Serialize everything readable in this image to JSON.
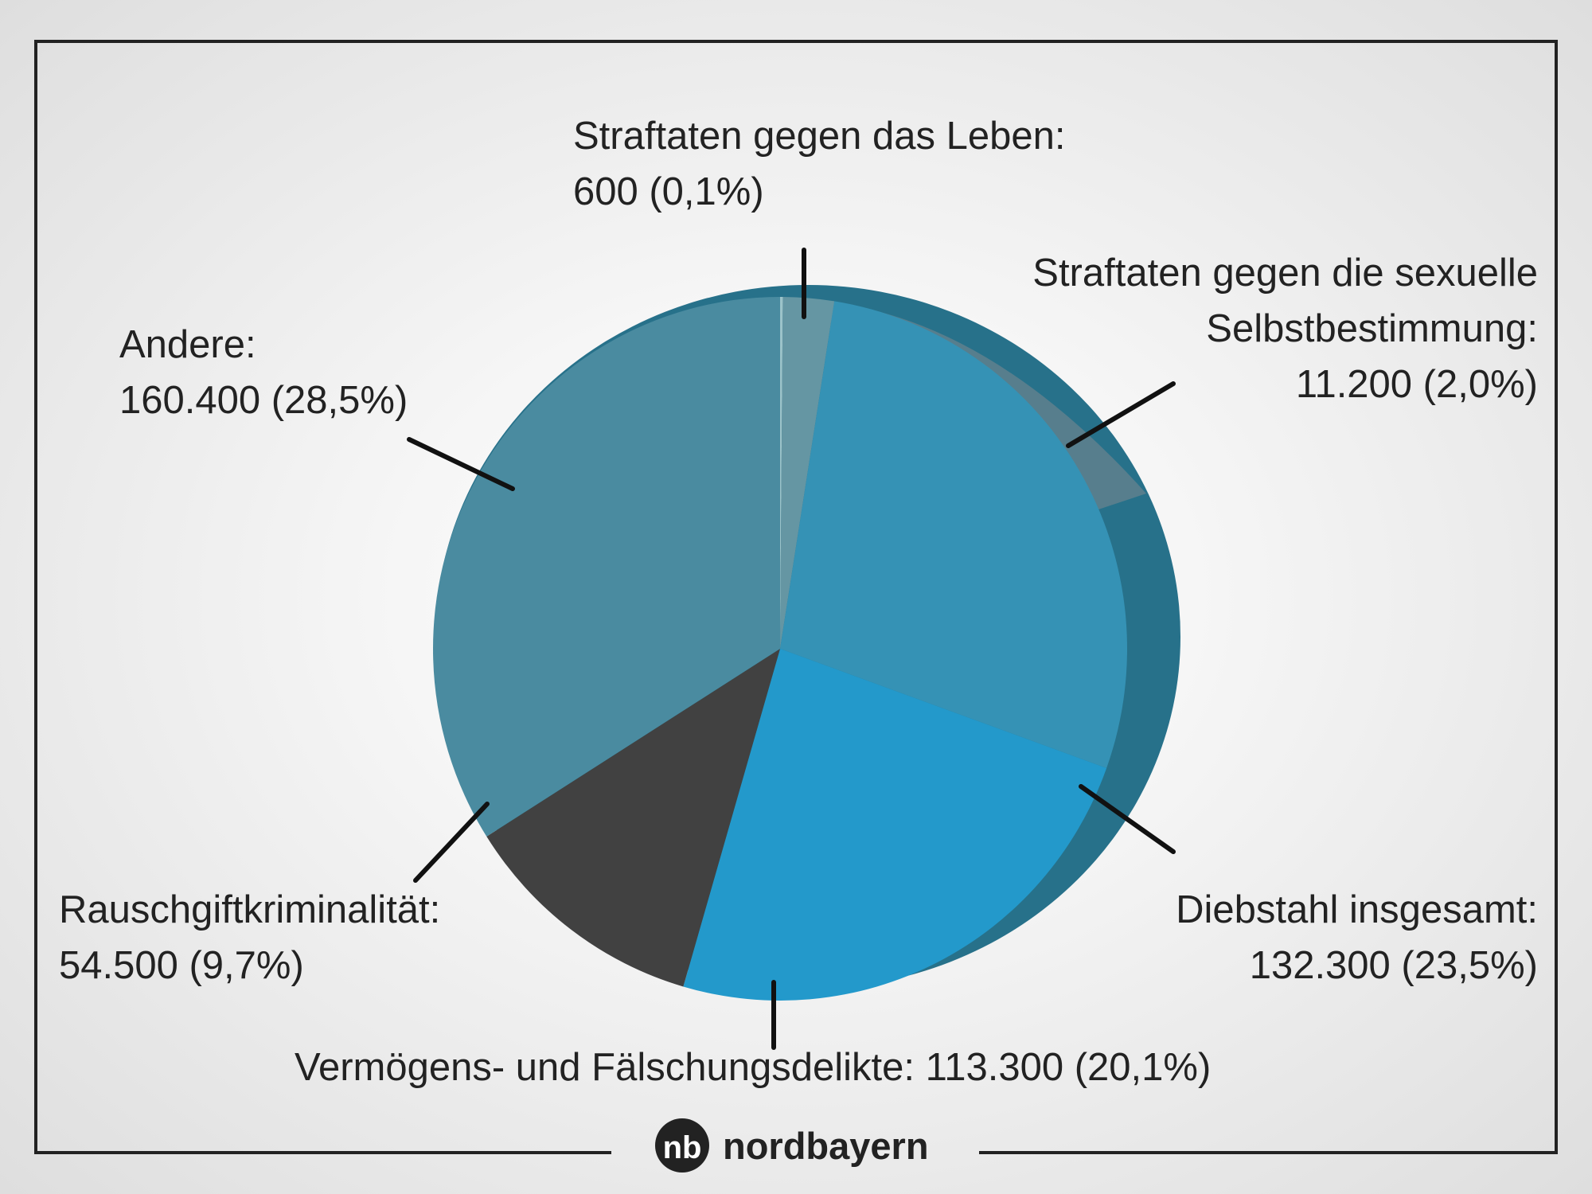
{
  "chart_data": {
    "type": "pie",
    "slices": [
      {
        "label": "Straftaten gegen das Leben:",
        "value": 600,
        "percent": "0,1%",
        "value_text": "600 (0,1%)",
        "color": "#9cc3c9"
      },
      {
        "label": "Straftaten gegen die sexuelle Selbstbestimmung:",
        "value": 11200,
        "percent": "2,0%",
        "value_text": "11.200 (2,0%)",
        "color": "#6596a3"
      },
      {
        "label": "Diebstahl insgesamt:",
        "value": 132300,
        "percent": "23,5%",
        "value_text": "132.300 (23,5%)",
        "color": "#3592b5"
      },
      {
        "label": "Vermögens- und Fälschungsdelikte:",
        "value": 113300,
        "percent": "20,1%",
        "value_text": "113.300 (20,1%)",
        "color": "#2399cb"
      },
      {
        "label": "Rauschgiftkriminalität:",
        "value": 54500,
        "percent": "9,7%",
        "value_text": "54.500 (9,7%)",
        "color": "#414141"
      },
      {
        "label": "Andere:",
        "value": 160400,
        "percent": "28,5%",
        "value_text": "160.400 (28,5%)",
        "color": "#4a8ba0"
      }
    ]
  },
  "labels": {
    "leben": {
      "line1": "Straftaten gegen das Leben:",
      "line2": "600 (0,1%)"
    },
    "sexuell": {
      "line1": "Straftaten gegen die sexuelle",
      "line2": "Selbstbestimmung:",
      "line3": "11.200 (2,0%)"
    },
    "andere": {
      "line1": "Andere:",
      "line2": "160.400 (28,5%)"
    },
    "diebstahl": {
      "line1": "Diebstahl insgesamt:",
      "line2": "132.300 (23,5%)"
    },
    "rausch": {
      "line1": "Rauschgiftkriminalität:",
      "line2": "54.500 (9,7%)"
    },
    "vermoegen": {
      "line1": "Vermögens- und Fälschungsdelikte: 113.300 (20,1%)"
    }
  },
  "brand": {
    "name": "nordbayern",
    "logo_icon": "nordbayern-nb-logo-icon"
  }
}
